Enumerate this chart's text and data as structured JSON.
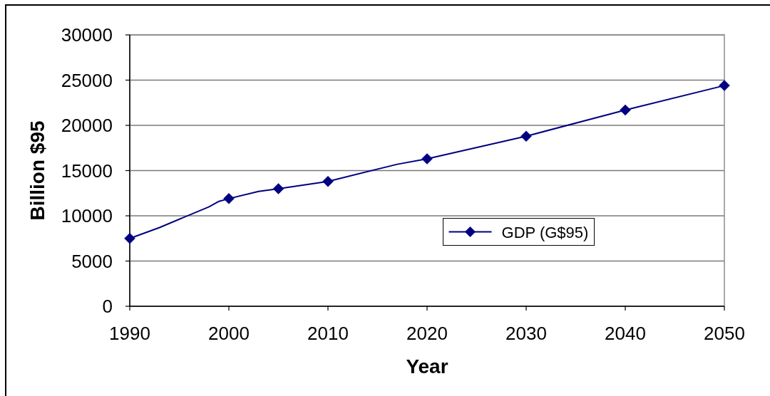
{
  "chart_data": {
    "type": "line",
    "xlabel": "Year",
    "ylabel": "Billion $95",
    "xlim": [
      1990,
      2050
    ],
    "xticks": [
      1990,
      2000,
      2010,
      2020,
      2030,
      2040,
      2050
    ],
    "ylim": [
      0,
      30000
    ],
    "yticks": [
      0,
      5000,
      10000,
      15000,
      20000,
      25000,
      30000
    ],
    "grid": "y",
    "legend": "bottom right",
    "series": [
      {
        "color": "#000080",
        "marker": "none",
        "x": [
          1990,
          1993,
          1998,
          1999,
          2000,
          2003,
          2005,
          2010,
          2017,
          2020,
          2030,
          2040,
          2050
        ],
        "values": [
          7500,
          8700,
          11000,
          11600,
          11900,
          12700,
          13000,
          13800,
          15700,
          16300,
          18800,
          21700,
          24400
        ]
      },
      {
        "type": "scatter",
        "name": "GDP (G$95)",
        "color": "#000080",
        "marker": "diamond",
        "x": [
          1990,
          2000,
          2005,
          2010,
          2020,
          2030,
          2040,
          2050
        ],
        "values": [
          7500,
          11900,
          13000,
          13800,
          16300,
          18800,
          21700,
          24400
        ]
      }
    ]
  }
}
